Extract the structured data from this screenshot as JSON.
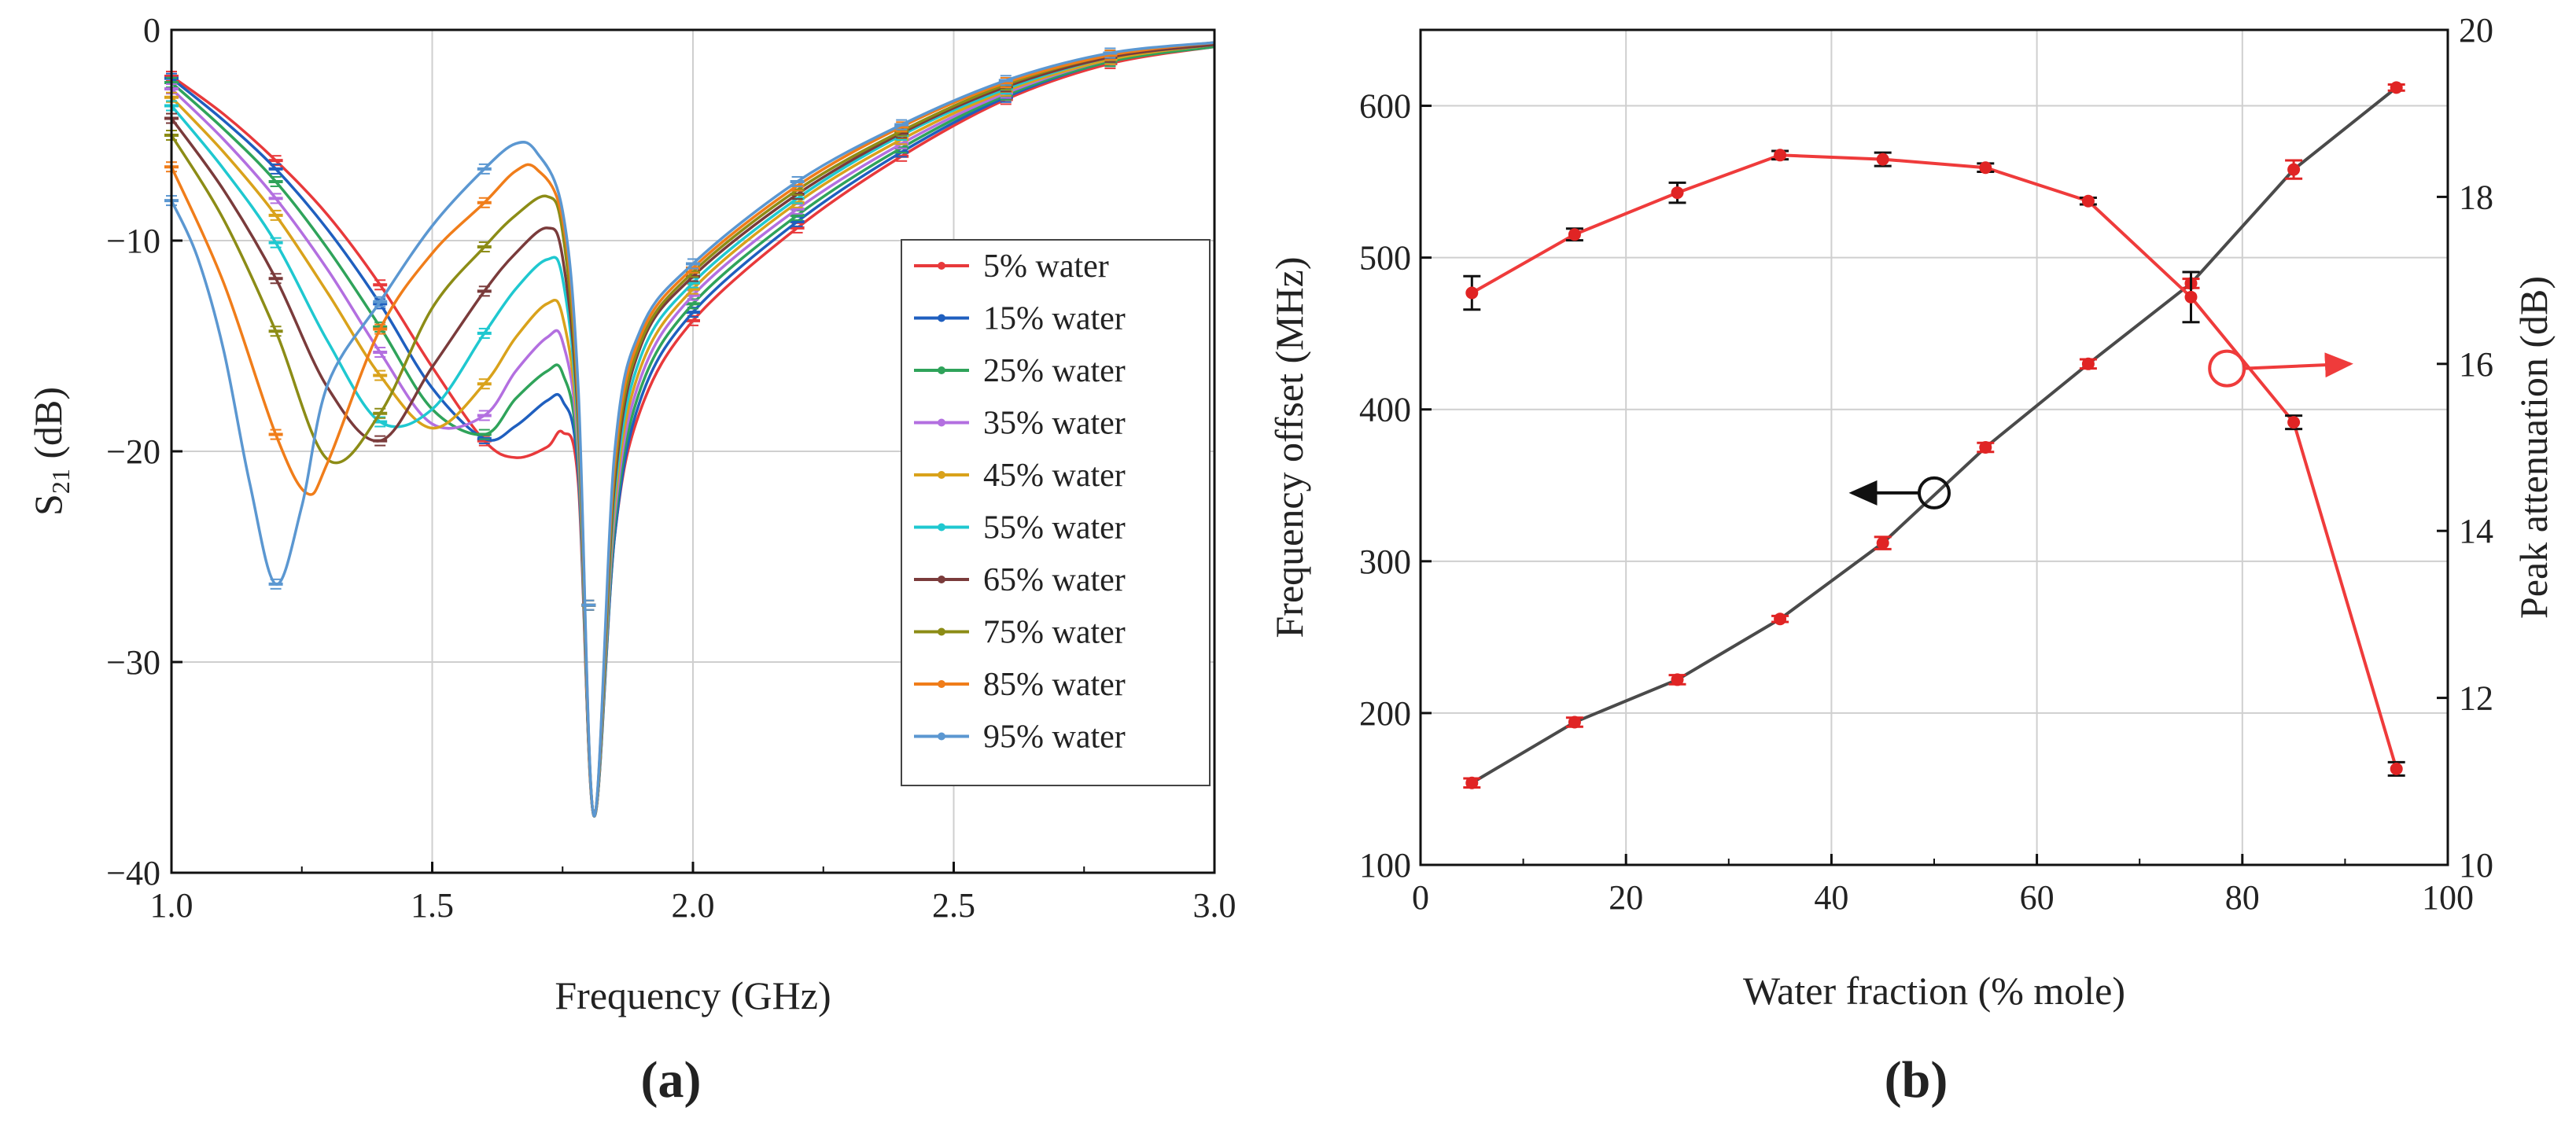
{
  "chart_data": [
    {
      "type": "line",
      "title": "",
      "caption": "(a)",
      "xlabel": "Frequency (GHz)",
      "ylabel_main": "S",
      "ylabel_sub": "21",
      "ylabel_unit": " (dB)",
      "xlim": [
        1.0,
        3.0
      ],
      "ylim": [
        -40,
        0
      ],
      "xticks": [
        1.0,
        1.5,
        2.0,
        2.5,
        3.0
      ],
      "xtick_labels": [
        "1.0",
        "1.5",
        "2.0",
        "2.5",
        "3.0"
      ],
      "yticks": [
        0,
        -10,
        -20,
        -30,
        -40
      ],
      "ytick_labels": [
        "0",
        "−10",
        "−20",
        "−30",
        "−40"
      ],
      "grid": true,
      "legend_position": "right",
      "marker_x": [
        1.0,
        1.2,
        1.4,
        1.6,
        1.8,
        2.0,
        2.2,
        2.4,
        2.6,
        2.8
      ],
      "series": [
        {
          "name": "5% water",
          "color": "#e8393b",
          "points": [
            [
              1.0,
              -2.2
            ],
            [
              1.1,
              -4.0
            ],
            [
              1.2,
              -6.2
            ],
            [
              1.3,
              -8.8
            ],
            [
              1.4,
              -12.1
            ],
            [
              1.5,
              -16.0
            ],
            [
              1.6,
              -19.5
            ],
            [
              1.66,
              -20.3
            ],
            [
              1.72,
              -19.8
            ],
            [
              1.75,
              -19.1
            ],
            [
              1.78,
              -21.5
            ],
            [
              1.81,
              -37.3
            ],
            [
              1.85,
              -24.0
            ],
            [
              1.9,
              -18.0
            ],
            [
              2.0,
              -13.8
            ],
            [
              2.2,
              -9.4
            ],
            [
              2.4,
              -6.0
            ],
            [
              2.6,
              -3.3
            ],
            [
              2.8,
              -1.6
            ],
            [
              3.0,
              -0.8
            ]
          ]
        },
        {
          "name": "15% water",
          "color": "#1f5fbf",
          "points": [
            [
              1.0,
              -2.3
            ],
            [
              1.1,
              -4.3
            ],
            [
              1.2,
              -6.6
            ],
            [
              1.3,
              -9.5
            ],
            [
              1.4,
              -13.0
            ],
            [
              1.5,
              -17.0
            ],
            [
              1.6,
              -19.4
            ],
            [
              1.66,
              -18.8
            ],
            [
              1.72,
              -17.6
            ],
            [
              1.75,
              -17.6
            ],
            [
              1.78,
              -21.0
            ],
            [
              1.81,
              -37.3
            ],
            [
              1.85,
              -24.0
            ],
            [
              1.9,
              -17.5
            ],
            [
              2.0,
              -13.4
            ],
            [
              2.2,
              -9.1
            ],
            [
              2.4,
              -5.8
            ],
            [
              2.6,
              -3.2
            ],
            [
              2.8,
              -1.5
            ],
            [
              3.0,
              -0.8
            ]
          ]
        },
        {
          "name": "25% water",
          "color": "#2fa35a",
          "points": [
            [
              1.0,
              -2.5
            ],
            [
              1.1,
              -4.7
            ],
            [
              1.2,
              -7.2
            ],
            [
              1.3,
              -10.4
            ],
            [
              1.4,
              -14.1
            ],
            [
              1.5,
              -18.0
            ],
            [
              1.6,
              -19.2
            ],
            [
              1.66,
              -17.5
            ],
            [
              1.72,
              -16.2
            ],
            [
              1.75,
              -16.3
            ],
            [
              1.78,
              -20.5
            ],
            [
              1.81,
              -37.3
            ],
            [
              1.85,
              -23.5
            ],
            [
              1.9,
              -17.0
            ],
            [
              2.0,
              -13.0
            ],
            [
              2.2,
              -8.8
            ],
            [
              2.4,
              -5.6
            ],
            [
              2.6,
              -3.1
            ],
            [
              2.8,
              -1.5
            ],
            [
              3.0,
              -0.8
            ]
          ]
        },
        {
          "name": "35% water",
          "color": "#b36fe0",
          "points": [
            [
              1.0,
              -2.8
            ],
            [
              1.1,
              -5.2
            ],
            [
              1.2,
              -8.0
            ],
            [
              1.3,
              -11.4
            ],
            [
              1.4,
              -15.3
            ],
            [
              1.5,
              -18.7
            ],
            [
              1.6,
              -18.3
            ],
            [
              1.66,
              -16.2
            ],
            [
              1.72,
              -14.6
            ],
            [
              1.75,
              -14.8
            ],
            [
              1.78,
              -20.0
            ],
            [
              1.81,
              -37.3
            ],
            [
              1.85,
              -23.0
            ],
            [
              1.9,
              -16.5
            ],
            [
              2.0,
              -12.6
            ],
            [
              2.2,
              -8.5
            ],
            [
              2.4,
              -5.4
            ],
            [
              2.6,
              -3.0
            ],
            [
              2.8,
              -1.4
            ],
            [
              3.0,
              -0.7
            ]
          ]
        },
        {
          "name": "45% water",
          "color": "#d9a21b",
          "points": [
            [
              1.0,
              -3.2
            ],
            [
              1.1,
              -5.8
            ],
            [
              1.2,
              -8.8
            ],
            [
              1.3,
              -12.5
            ],
            [
              1.4,
              -16.4
            ],
            [
              1.5,
              -18.9
            ],
            [
              1.6,
              -16.8
            ],
            [
              1.66,
              -14.6
            ],
            [
              1.72,
              -13.0
            ],
            [
              1.75,
              -13.6
            ],
            [
              1.78,
              -19.5
            ],
            [
              1.81,
              -37.3
            ],
            [
              1.85,
              -22.5
            ],
            [
              1.9,
              -16.0
            ],
            [
              2.0,
              -12.3
            ],
            [
              2.2,
              -8.2
            ],
            [
              2.4,
              -5.2
            ],
            [
              2.6,
              -2.9
            ],
            [
              2.8,
              -1.4
            ],
            [
              3.0,
              -0.7
            ]
          ]
        },
        {
          "name": "55% water",
          "color": "#1fc8d0",
          "points": [
            [
              1.0,
              -3.6
            ],
            [
              1.1,
              -6.6
            ],
            [
              1.2,
              -10.1
            ],
            [
              1.3,
              -14.8
            ],
            [
              1.4,
              -18.6
            ],
            [
              1.5,
              -18.0
            ],
            [
              1.6,
              -14.4
            ],
            [
              1.66,
              -12.3
            ],
            [
              1.72,
              -10.9
            ],
            [
              1.75,
              -11.8
            ],
            [
              1.78,
              -19.0
            ],
            [
              1.81,
              -37.3
            ],
            [
              1.85,
              -22.0
            ],
            [
              1.9,
              -15.5
            ],
            [
              2.0,
              -12.0
            ],
            [
              2.2,
              -8.0
            ],
            [
              2.4,
              -5.0
            ],
            [
              2.6,
              -2.8
            ],
            [
              2.8,
              -1.3
            ],
            [
              3.0,
              -0.7
            ]
          ]
        },
        {
          "name": "65% water",
          "color": "#7a3b3b",
          "points": [
            [
              1.0,
              -4.2
            ],
            [
              1.1,
              -7.6
            ],
            [
              1.2,
              -11.8
            ],
            [
              1.3,
              -17.0
            ],
            [
              1.4,
              -19.5
            ],
            [
              1.5,
              -16.0
            ],
            [
              1.6,
              -12.4
            ],
            [
              1.66,
              -10.6
            ],
            [
              1.72,
              -9.4
            ],
            [
              1.75,
              -10.8
            ],
            [
              1.78,
              -18.5
            ],
            [
              1.81,
              -37.3
            ],
            [
              1.85,
              -21.5
            ],
            [
              1.9,
              -15.0
            ],
            [
              2.0,
              -11.7
            ],
            [
              2.2,
              -7.8
            ],
            [
              2.4,
              -4.9
            ],
            [
              2.6,
              -2.7
            ],
            [
              2.8,
              -1.3
            ],
            [
              3.0,
              -0.7
            ]
          ]
        },
        {
          "name": "75% water",
          "color": "#8c8c16",
          "points": [
            [
              1.0,
              -5.0
            ],
            [
              1.1,
              -9.0
            ],
            [
              1.2,
              -14.3
            ],
            [
              1.3,
              -20.4
            ],
            [
              1.4,
              -18.2
            ],
            [
              1.5,
              -13.2
            ],
            [
              1.6,
              -10.3
            ],
            [
              1.66,
              -8.8
            ],
            [
              1.72,
              -7.9
            ],
            [
              1.75,
              -9.6
            ],
            [
              1.78,
              -18.0
            ],
            [
              1.81,
              -37.3
            ],
            [
              1.85,
              -21.0
            ],
            [
              1.9,
              -14.8
            ],
            [
              2.0,
              -11.5
            ],
            [
              2.2,
              -7.6
            ],
            [
              2.4,
              -4.8
            ],
            [
              2.6,
              -2.6
            ],
            [
              2.8,
              -1.2
            ],
            [
              3.0,
              -0.6
            ]
          ]
        },
        {
          "name": "85% water",
          "color": "#f07d1a",
          "points": [
            [
              1.0,
              -6.5
            ],
            [
              1.1,
              -12.0
            ],
            [
              1.2,
              -19.2
            ],
            [
              1.26,
              -22.0
            ],
            [
              1.3,
              -20.5
            ],
            [
              1.4,
              -14.2
            ],
            [
              1.5,
              -10.6
            ],
            [
              1.6,
              -8.2
            ],
            [
              1.66,
              -6.7
            ],
            [
              1.7,
              -6.6
            ],
            [
              1.75,
              -9.0
            ],
            [
              1.78,
              -17.5
            ],
            [
              1.81,
              -37.3
            ],
            [
              1.85,
              -20.5
            ],
            [
              1.9,
              -14.5
            ],
            [
              2.0,
              -11.3
            ],
            [
              2.2,
              -7.4
            ],
            [
              2.4,
              -4.6
            ],
            [
              2.6,
              -2.5
            ],
            [
              2.8,
              -1.2
            ],
            [
              3.0,
              -0.6
            ]
          ]
        },
        {
          "name": "95% water",
          "color": "#5b97d1",
          "points": [
            [
              1.0,
              -8.1
            ],
            [
              1.05,
              -10.8
            ],
            [
              1.1,
              -15.2
            ],
            [
              1.15,
              -21.5
            ],
            [
              1.2,
              -26.3
            ],
            [
              1.25,
              -22.6
            ],
            [
              1.3,
              -16.8
            ],
            [
              1.4,
              -12.9
            ],
            [
              1.5,
              -9.3
            ],
            [
              1.6,
              -6.6
            ],
            [
              1.66,
              -5.4
            ],
            [
              1.7,
              -5.8
            ],
            [
              1.75,
              -8.6
            ],
            [
              1.78,
              -17.0
            ],
            [
              1.81,
              -37.3
            ],
            [
              1.85,
              -20.0
            ],
            [
              1.9,
              -14.2
            ],
            [
              2.0,
              -11.1
            ],
            [
              2.2,
              -7.2
            ],
            [
              2.4,
              -4.5
            ],
            [
              2.6,
              -2.4
            ],
            [
              2.8,
              -1.1
            ],
            [
              3.0,
              -0.6
            ]
          ]
        }
      ],
      "flat_marker": {
        "x": 1.8,
        "y": -27.3
      }
    },
    {
      "type": "line",
      "caption": "(b)",
      "xlabel": "Water fraction (% mole)",
      "ylabel_left": "Frequency offset (MHz)",
      "ylabel_right": "Peak attenuation (dB)",
      "xlim": [
        0,
        100
      ],
      "ylim_left": [
        100,
        650
      ],
      "ylim_right": [
        10,
        20
      ],
      "xticks": [
        0,
        20,
        40,
        60,
        80,
        100
      ],
      "xtick_labels": [
        "0",
        "20",
        "40",
        "60",
        "80",
        "100"
      ],
      "yticks_left": [
        100,
        200,
        300,
        400,
        500,
        600
      ],
      "ytick_labels_left": [
        "100",
        "200",
        "300",
        "400",
        "500",
        "600"
      ],
      "yticks_right": [
        10,
        12,
        14,
        16,
        18,
        20
      ],
      "ytick_labels_right": [
        "10",
        "12",
        "14",
        "16",
        "18",
        "20"
      ],
      "grid": true,
      "series": [
        {
          "name": "Frequency offset",
          "axis": "left",
          "color": "#4a4a4a",
          "marker_color": "#e02424",
          "x": [
            5,
            15,
            25,
            35,
            45,
            55,
            65,
            75,
            85,
            95
          ],
          "values": [
            154,
            194,
            222,
            262,
            312,
            375,
            430,
            483,
            558,
            612
          ],
          "errors": [
            3,
            3,
            3,
            2,
            4,
            3,
            3,
            3,
            6,
            2
          ]
        },
        {
          "name": "Peak attenuation",
          "axis": "right",
          "color": "#ef3b3b",
          "marker_color": "#e02424",
          "err_color": "#111111",
          "x": [
            5,
            15,
            25,
            35,
            45,
            55,
            65,
            75,
            85,
            95
          ],
          "values": [
            16.85,
            17.55,
            18.05,
            18.5,
            18.45,
            18.35,
            17.95,
            16.8,
            15.3,
            11.15
          ],
          "errors": [
            0.2,
            0.07,
            0.12,
            0.05,
            0.08,
            0.05,
            0.04,
            0.3,
            0.08,
            0.08
          ]
        }
      ],
      "annotations": [
        {
          "type": "circle-arrow",
          "target": "left",
          "circle": [
            50,
            345
          ],
          "arrow_to": [
            42,
            345
          ]
        },
        {
          "type": "circle-arrow",
          "target": "right",
          "circle": [
            78.5,
            427
          ],
          "arrow_to": [
            90.5,
            430
          ]
        }
      ]
    }
  ]
}
